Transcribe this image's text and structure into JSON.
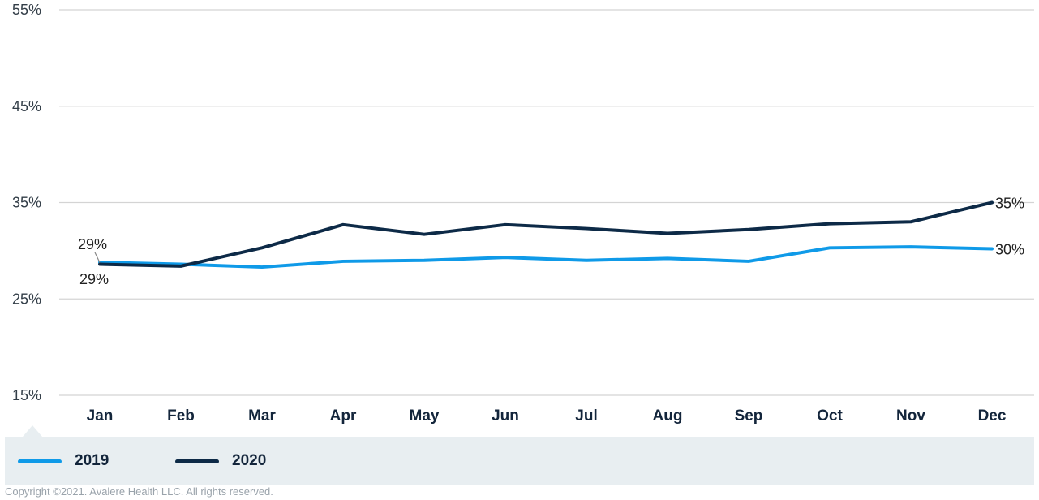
{
  "chart_data": {
    "type": "line",
    "categories": [
      "Jan",
      "Feb",
      "Mar",
      "Apr",
      "May",
      "Jun",
      "Jul",
      "Aug",
      "Sep",
      "Oct",
      "Nov",
      "Dec"
    ],
    "ylim": [
      15,
      55
    ],
    "yticks": [
      15,
      25,
      35,
      45,
      55
    ],
    "ytick_labels": [
      "15%",
      "25%",
      "35%",
      "45%",
      "55%"
    ],
    "grid": true,
    "series": [
      {
        "name": "2019",
        "color": "#0f9ae8",
        "values": [
          28.8,
          28.6,
          28.3,
          28.9,
          29.0,
          29.3,
          29.0,
          29.2,
          28.9,
          30.3,
          30.4,
          30.2
        ],
        "end_labels": {
          "first": "29%",
          "last": "30%"
        }
      },
      {
        "name": "2020",
        "color": "#0d2a47",
        "values": [
          28.6,
          28.4,
          30.3,
          32.7,
          31.7,
          32.7,
          32.3,
          31.8,
          32.2,
          32.8,
          33.0,
          35.0
        ],
        "end_labels": {
          "first": "29%",
          "last": "35%"
        }
      }
    ],
    "legend_position": "bottom"
  },
  "copyright": "Copyright ©2021. Avalere Health LLC. All rights reserved."
}
